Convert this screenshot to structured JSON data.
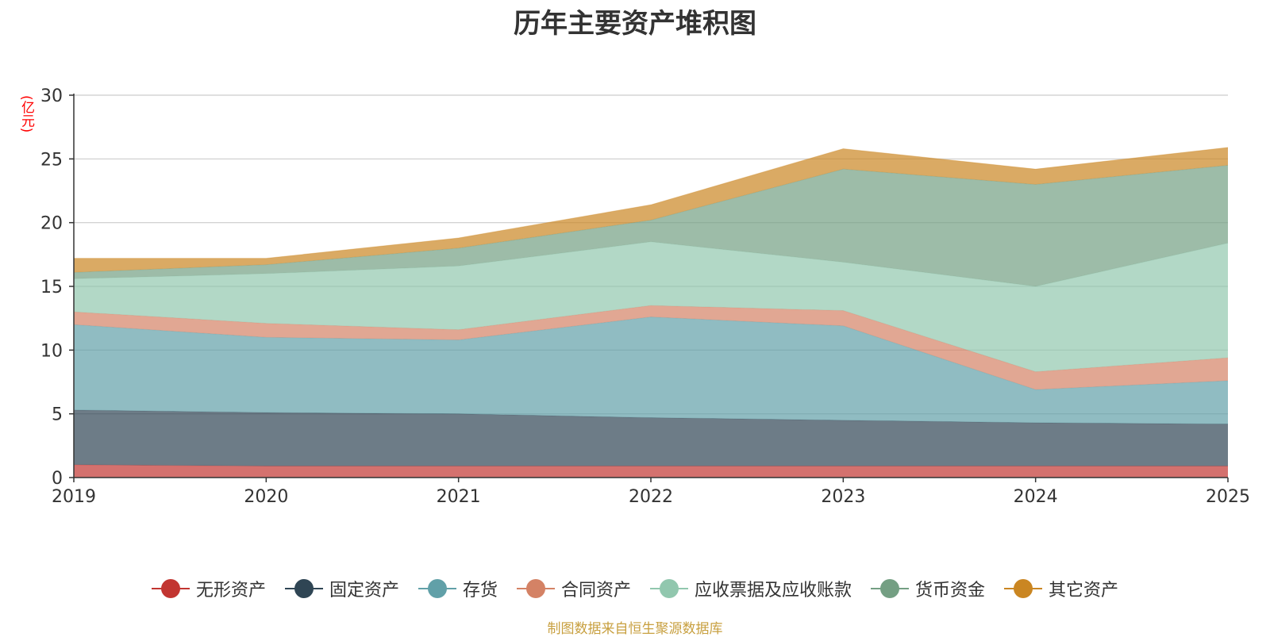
{
  "chart_data": {
    "type": "area",
    "stacked": true,
    "title": "历年主要资产堆积图",
    "ylabel": "(亿元)",
    "xlabel": "",
    "x": [
      "2019",
      "2020",
      "2021",
      "2022",
      "2023",
      "2024",
      "2025"
    ],
    "ylim": [
      0,
      30
    ],
    "yticks": [
      0,
      5,
      10,
      15,
      20,
      25,
      30
    ],
    "grid": true,
    "legend_position": "bottom",
    "series": [
      {
        "name": "无形资产",
        "color": "#c23531",
        "values": [
          1.0,
          0.9,
          0.9,
          0.9,
          0.9,
          0.9,
          0.9
        ]
      },
      {
        "name": "固定资产",
        "color": "#2f4554",
        "values": [
          4.3,
          4.2,
          4.1,
          3.8,
          3.6,
          3.4,
          3.3
        ]
      },
      {
        "name": "存货",
        "color": "#61a0a8",
        "values": [
          6.7,
          5.9,
          5.8,
          7.9,
          7.4,
          2.6,
          3.4
        ]
      },
      {
        "name": "合同资产",
        "color": "#d48265",
        "values": [
          1.0,
          1.1,
          0.8,
          0.9,
          1.2,
          1.4,
          1.8
        ]
      },
      {
        "name": "应收票据及应收账款",
        "color": "#91c7ae",
        "values": [
          2.6,
          3.9,
          5.0,
          5.0,
          3.8,
          6.7,
          9.0
        ]
      },
      {
        "name": "货币资金",
        "color": "#749f83",
        "values": [
          0.5,
          0.7,
          1.4,
          1.7,
          7.3,
          8.0,
          6.1
        ]
      },
      {
        "name": "其它资产",
        "color": "#ca8622",
        "values": [
          1.1,
          0.5,
          0.8,
          1.2,
          1.6,
          1.2,
          1.4
        ]
      }
    ]
  },
  "source_note": "制图数据来自恒生聚源数据库"
}
